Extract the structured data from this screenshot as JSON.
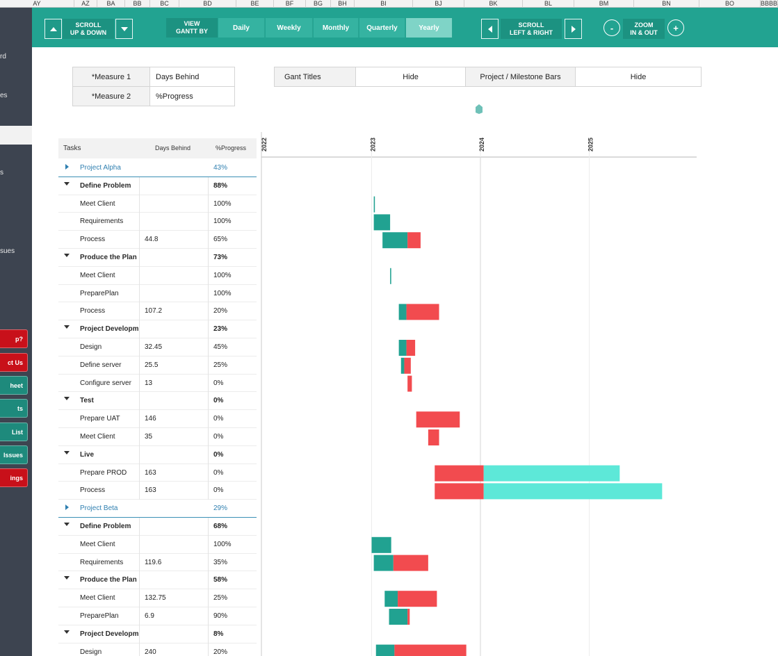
{
  "column_headers": [
    "AY",
    "AZ",
    "BA",
    "BB",
    "BC",
    "BD",
    "BE",
    "BF",
    "BG",
    "BH",
    "BI",
    "BJ",
    "BK",
    "BL",
    "BM",
    "BN",
    "BO",
    "BBBB"
  ],
  "sidebar": {
    "nav_items": [
      "rd",
      "es",
      "",
      "s",
      "",
      "sues"
    ],
    "buttons": [
      {
        "label": "p?",
        "color": "#c8101a"
      },
      {
        "label": "ct Us",
        "color": "#c8101a"
      },
      {
        "label": "heet",
        "color": "#1e8a7c"
      },
      {
        "label": "ts",
        "color": "#1e8a7c"
      },
      {
        "label": "List",
        "color": "#1e8a7c"
      },
      {
        "label": "Issues",
        "color": "#1e8a7c"
      },
      {
        "label": "ings",
        "color": "#c8101a"
      }
    ]
  },
  "toolbar": {
    "scroll_vertical_label": "SCROLL\nUP & DOWN",
    "view_gantt_label": "VIEW\nGANTT BY",
    "tabs": [
      "Daily",
      "Weekly",
      "Monthly",
      "Quarterly",
      "Yearly"
    ],
    "selected_tab": "Yearly",
    "scroll_horizontal_label": "SCROLL\nLEFT & RIGHT",
    "zoom_label": "ZOOM\nIN & OUT",
    "zoom_out": "-",
    "zoom_in": "+"
  },
  "measures": {
    "measure1_key": "*Measure 1",
    "measure1_value": "Days Behind",
    "measure2_key": "*Measure 2",
    "measure2_value": "%Progress"
  },
  "display_options": {
    "gant_titles_label": "Gant Titles",
    "gant_titles_value": "Hide",
    "bars_label": "Project / Milestone Bars",
    "bars_value": "Hide"
  },
  "grid": {
    "col_tasks": "Tasks",
    "col_measure1": "Days Behind",
    "col_measure2": "%Progress",
    "rows": [
      {
        "type": "project",
        "name": "Project Alpha",
        "m1": "",
        "m2": "43%"
      },
      {
        "type": "summary",
        "name": "Define Problem",
        "m1": "",
        "m2": "88%"
      },
      {
        "type": "task",
        "name": "Meet Client",
        "m1": "",
        "m2": "100%"
      },
      {
        "type": "task",
        "name": "Requirements",
        "m1": "",
        "m2": "100%"
      },
      {
        "type": "task",
        "name": "Process",
        "m1": "44.8",
        "m2": "65%"
      },
      {
        "type": "summary",
        "name": "Produce the Plan",
        "m1": "",
        "m2": "73%"
      },
      {
        "type": "task",
        "name": "Meet Client",
        "m1": "",
        "m2": "100%"
      },
      {
        "type": "task",
        "name": "PreparePlan",
        "m1": "",
        "m2": "100%"
      },
      {
        "type": "task",
        "name": "Process",
        "m1": "107.2",
        "m2": "20%"
      },
      {
        "type": "summary",
        "name": "Project Developm",
        "m1": "",
        "m2": "23%"
      },
      {
        "type": "task",
        "name": "Design",
        "m1": "32.45",
        "m2": "45%"
      },
      {
        "type": "task",
        "name": "Define server",
        "m1": "25.5",
        "m2": "25%"
      },
      {
        "type": "task",
        "name": "Configure server",
        "m1": "13",
        "m2": "0%"
      },
      {
        "type": "summary",
        "name": "Test",
        "m1": "",
        "m2": "0%"
      },
      {
        "type": "task",
        "name": "Prepare UAT",
        "m1": "146",
        "m2": "0%"
      },
      {
        "type": "task",
        "name": "Meet Client",
        "m1": "35",
        "m2": "0%"
      },
      {
        "type": "summary",
        "name": "Live",
        "m1": "",
        "m2": "0%"
      },
      {
        "type": "task",
        "name": "Prepare PROD",
        "m1": "163",
        "m2": "0%"
      },
      {
        "type": "task",
        "name": "Process",
        "m1": "163",
        "m2": "0%"
      },
      {
        "type": "project",
        "name": "Project Beta",
        "m1": "",
        "m2": "29%"
      },
      {
        "type": "summary",
        "name": "Define Problem",
        "m1": "",
        "m2": "68%"
      },
      {
        "type": "task",
        "name": "Meet Client",
        "m1": "",
        "m2": "100%"
      },
      {
        "type": "task",
        "name": "Requirements",
        "m1": "119.6",
        "m2": "35%"
      },
      {
        "type": "summary",
        "name": "Produce the Plan",
        "m1": "",
        "m2": "58%"
      },
      {
        "type": "task",
        "name": "Meet Client",
        "m1": "132.75",
        "m2": "25%"
      },
      {
        "type": "task",
        "name": "PreparePlan",
        "m1": "6.9",
        "m2": "90%"
      },
      {
        "type": "summary",
        "name": "Project Developm",
        "m1": "",
        "m2": "8%"
      },
      {
        "type": "task",
        "name": "Design",
        "m1": "240",
        "m2": "20%"
      }
    ]
  },
  "chart_data": {
    "type": "bar",
    "subtype": "gantt",
    "x_axis": "years",
    "tick_labels": [
      "2022",
      "2023",
      "2024",
      "2025"
    ],
    "xlim": [
      2022.0,
      2025.99
    ],
    "today": 2024.0,
    "colors": {
      "done": "#21a291",
      "behind": "#f24b4f",
      "remaining": "#5de8d8",
      "today_marker": "#6fc1b8"
    },
    "bars": [
      {
        "row": 2,
        "segments": [
          {
            "kind": "done",
            "start": 2023.02,
            "end": 2023.03
          }
        ]
      },
      {
        "row": 3,
        "segments": [
          {
            "kind": "done",
            "start": 2023.02,
            "end": 2023.17
          }
        ]
      },
      {
        "row": 4,
        "segments": [
          {
            "kind": "done",
            "start": 2023.1,
            "end": 2023.33
          },
          {
            "kind": "behind",
            "start": 2023.33,
            "end": 2023.45
          }
        ]
      },
      {
        "row": 6,
        "segments": [
          {
            "kind": "done",
            "start": 2023.17,
            "end": 2023.18
          }
        ]
      },
      {
        "row": 8,
        "segments": [
          {
            "kind": "done",
            "start": 2023.25,
            "end": 2023.32
          },
          {
            "kind": "behind",
            "start": 2023.32,
            "end": 2023.62
          }
        ]
      },
      {
        "row": 10,
        "segments": [
          {
            "kind": "done",
            "start": 2023.25,
            "end": 2023.32
          },
          {
            "kind": "behind",
            "start": 2023.32,
            "end": 2023.4
          }
        ]
      },
      {
        "row": 11,
        "segments": [
          {
            "kind": "done",
            "start": 2023.27,
            "end": 2023.3
          },
          {
            "kind": "behind",
            "start": 2023.3,
            "end": 2023.36
          }
        ]
      },
      {
        "row": 12,
        "segments": [
          {
            "kind": "behind",
            "start": 2023.33,
            "end": 2023.37
          }
        ]
      },
      {
        "row": 14,
        "segments": [
          {
            "kind": "behind",
            "start": 2023.41,
            "end": 2023.81
          }
        ]
      },
      {
        "row": 15,
        "segments": [
          {
            "kind": "behind",
            "start": 2023.52,
            "end": 2023.62
          }
        ]
      },
      {
        "row": 17,
        "segments": [
          {
            "kind": "behind",
            "start": 2023.58,
            "end": 2024.03
          },
          {
            "kind": "remaining",
            "start": 2024.03,
            "end": 2025.28
          }
        ]
      },
      {
        "row": 18,
        "segments": [
          {
            "kind": "behind",
            "start": 2023.58,
            "end": 2024.03
          },
          {
            "kind": "remaining",
            "start": 2024.03,
            "end": 2025.67
          }
        ]
      },
      {
        "row": 21,
        "segments": [
          {
            "kind": "done",
            "start": 2023.0,
            "end": 2023.18
          }
        ]
      },
      {
        "row": 22,
        "segments": [
          {
            "kind": "done",
            "start": 2023.02,
            "end": 2023.2
          },
          {
            "kind": "behind",
            "start": 2023.2,
            "end": 2023.52
          }
        ]
      },
      {
        "row": 24,
        "segments": [
          {
            "kind": "done",
            "start": 2023.12,
            "end": 2023.24
          },
          {
            "kind": "behind",
            "start": 2023.24,
            "end": 2023.6
          }
        ]
      },
      {
        "row": 25,
        "segments": [
          {
            "kind": "done",
            "start": 2023.16,
            "end": 2023.33
          },
          {
            "kind": "behind",
            "start": 2023.33,
            "end": 2023.35
          }
        ]
      },
      {
        "row": 27,
        "segments": [
          {
            "kind": "done",
            "start": 2023.04,
            "end": 2023.21
          },
          {
            "kind": "behind",
            "start": 2023.21,
            "end": 2023.87
          }
        ]
      }
    ]
  }
}
